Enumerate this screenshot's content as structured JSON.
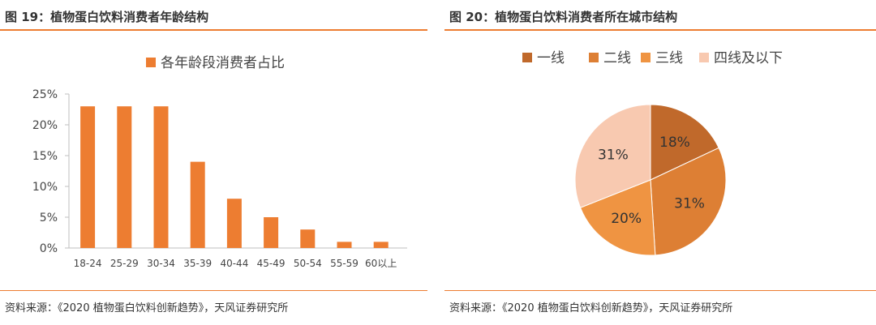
{
  "left": {
    "title": "图 19：植物蛋白饮料消费者年龄结构",
    "source": "资料来源：《2020 植物蛋白饮料创新趋势》，天风证券研究所"
  },
  "right": {
    "title": "图 20：植物蛋白饮料消费者所在城市结构",
    "source": "资料来源：《2020 植物蛋白饮料创新趋势》，天风证券研究所"
  },
  "colors": {
    "accent": "#ed7d31"
  },
  "chart_data": [
    {
      "type": "bar",
      "legend": "各年龄段消费者占比",
      "categories": [
        "18-24",
        "25-29",
        "30-34",
        "35-39",
        "40-44",
        "45-49",
        "50-54",
        "55-59",
        "60以上"
      ],
      "values": [
        23,
        23,
        23,
        14,
        8,
        5,
        3,
        1,
        1
      ],
      "unit": "%",
      "ylim": [
        0,
        25
      ],
      "yticks": [
        "0%",
        "5%",
        "10%",
        "15%",
        "20%",
        "25%"
      ],
      "grid": false,
      "legend_position": "top",
      "color": "#ed7d31"
    },
    {
      "type": "pie",
      "labels": [
        "一线",
        "二线",
        "三线",
        "四线及以下"
      ],
      "values": [
        18,
        31,
        20,
        31
      ],
      "value_labels": [
        "18%",
        "31%",
        "20%",
        "31%"
      ],
      "colors": [
        "#c0692b",
        "#dd7f34",
        "#ef9442",
        "#f8c9b0"
      ],
      "legend_position": "top"
    }
  ]
}
